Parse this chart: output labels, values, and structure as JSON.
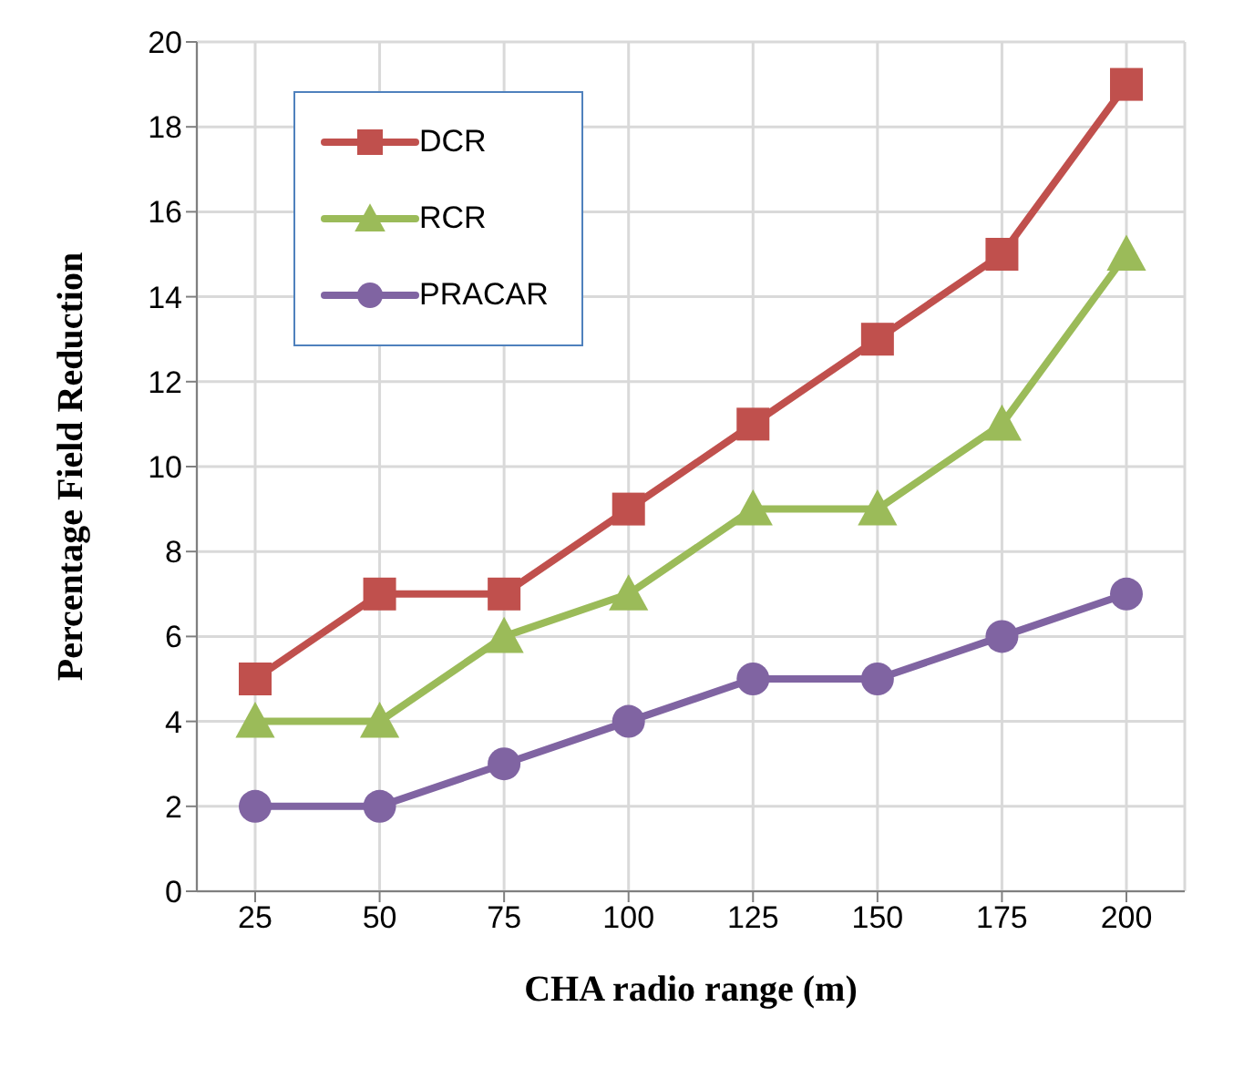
{
  "chart_data": {
    "type": "line",
    "xlabel": "CHA radio range (m)",
    "ylabel": "Percentage Field Reduction",
    "categories": [
      "25",
      "50",
      "75",
      "100",
      "125",
      "150",
      "175",
      "200"
    ],
    "series": [
      {
        "name": "DCR",
        "color": "#c0504d",
        "marker": "square",
        "values": [
          5,
          7,
          7,
          9,
          11,
          13,
          15,
          19
        ]
      },
      {
        "name": "RCR",
        "color": "#9bbb59",
        "marker": "triangle",
        "values": [
          4,
          4,
          6,
          7,
          9,
          9,
          11,
          15
        ]
      },
      {
        "name": "PRACAR",
        "color": "#8064a2",
        "marker": "circle",
        "values": [
          2,
          2,
          3,
          4,
          5,
          5,
          6,
          7
        ]
      }
    ],
    "ylim": [
      0,
      20
    ],
    "yticks": [
      0,
      2,
      4,
      6,
      8,
      10,
      12,
      14,
      16,
      18,
      20
    ],
    "grid": true,
    "legend": "top left"
  }
}
